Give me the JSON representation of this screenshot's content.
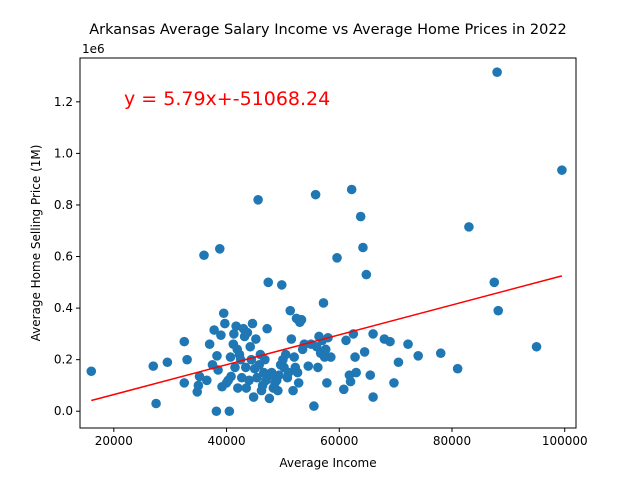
{
  "chart_data": {
    "type": "scatter",
    "title": "Arkansas Average Salary Income vs Average Home Prices in 2022",
    "xlabel": "Average Income",
    "ylabel": "Average Home Selling Price (1M)",
    "y_offset_label": "1e6",
    "xlim": [
      14000,
      102000
    ],
    "ylim": [
      -0.065,
      1.37
    ],
    "xticks": [
      20000,
      40000,
      60000,
      80000,
      100000
    ],
    "xtick_labels": [
      "20000",
      "40000",
      "60000",
      "80000",
      "100000"
    ],
    "yticks": [
      0.0,
      0.2,
      0.4,
      0.6,
      0.8,
      1.0,
      1.2
    ],
    "ytick_labels": [
      "0.0",
      "0.2",
      "0.4",
      "0.6",
      "0.8",
      "1.0",
      "1.2"
    ],
    "grid": false,
    "annotation": "y = 5.79x+-51068.24",
    "colors": {
      "points": "#1f77b4",
      "regression": "#ff0000",
      "annotation": "#ff0000"
    },
    "regression": {
      "slope": 5.79,
      "intercept": -51068.24,
      "x_range": [
        16000,
        99500
      ]
    },
    "points": [
      [
        16000,
        0.155
      ],
      [
        27000,
        0.175
      ],
      [
        27500,
        0.03
      ],
      [
        29500,
        0.19
      ],
      [
        32500,
        0.27
      ],
      [
        32500,
        0.11
      ],
      [
        33000,
        0.2
      ],
      [
        34800,
        0.075
      ],
      [
        35000,
        0.1
      ],
      [
        35200,
        0.135
      ],
      [
        36000,
        0.605
      ],
      [
        36500,
        0.12
      ],
      [
        37000,
        0.26
      ],
      [
        37500,
        0.18
      ],
      [
        37800,
        0.315
      ],
      [
        38200,
        0.0
      ],
      [
        38300,
        0.215
      ],
      [
        38500,
        0.16
      ],
      [
        38800,
        0.63
      ],
      [
        39000,
        0.295
      ],
      [
        39200,
        0.095
      ],
      [
        39500,
        0.38
      ],
      [
        39700,
        0.34
      ],
      [
        40000,
        0.11
      ],
      [
        40300,
        0.12
      ],
      [
        40500,
        0.0
      ],
      [
        40700,
        0.21
      ],
      [
        40800,
        0.135
      ],
      [
        41200,
        0.26
      ],
      [
        41300,
        0.3
      ],
      [
        41500,
        0.17
      ],
      [
        41700,
        0.33
      ],
      [
        41900,
        0.24
      ],
      [
        42000,
        0.09
      ],
      [
        42300,
        0.22
      ],
      [
        42500,
        0.2
      ],
      [
        42700,
        0.13
      ],
      [
        43000,
        0.32
      ],
      [
        43200,
        0.29
      ],
      [
        43400,
        0.17
      ],
      [
        43500,
        0.09
      ],
      [
        43700,
        0.305
      ],
      [
        44000,
        0.12
      ],
      [
        44200,
        0.25
      ],
      [
        44400,
        0.2
      ],
      [
        44600,
        0.34
      ],
      [
        44800,
        0.055
      ],
      [
        45000,
        0.165
      ],
      [
        45200,
        0.28
      ],
      [
        45400,
        0.13
      ],
      [
        45600,
        0.82
      ],
      [
        45800,
        0.18
      ],
      [
        46000,
        0.22
      ],
      [
        46200,
        0.08
      ],
      [
        46400,
        0.1
      ],
      [
        46600,
        0.15
      ],
      [
        46800,
        0.2
      ],
      [
        47000,
        0.12
      ],
      [
        47200,
        0.32
      ],
      [
        47400,
        0.5
      ],
      [
        47600,
        0.05
      ],
      [
        47800,
        0.14
      ],
      [
        48000,
        0.15
      ],
      [
        48300,
        0.09
      ],
      [
        48600,
        0.11
      ],
      [
        48900,
        0.12
      ],
      [
        49100,
        0.08
      ],
      [
        49300,
        0.14
      ],
      [
        49600,
        0.18
      ],
      [
        49800,
        0.49
      ],
      [
        50000,
        0.2
      ],
      [
        50200,
        0.17
      ],
      [
        50500,
        0.22
      ],
      [
        50800,
        0.13
      ],
      [
        51000,
        0.15
      ],
      [
        51300,
        0.39
      ],
      [
        51500,
        0.28
      ],
      [
        51800,
        0.08
      ],
      [
        52000,
        0.21
      ],
      [
        52200,
        0.17
      ],
      [
        52400,
        0.36
      ],
      [
        52600,
        0.15
      ],
      [
        52800,
        0.11
      ],
      [
        53000,
        0.345
      ],
      [
        53300,
        0.355
      ],
      [
        53500,
        0.24
      ],
      [
        53800,
        0.26
      ],
      [
        54500,
        0.175
      ],
      [
        55000,
        0.26
      ],
      [
        55500,
        0.02
      ],
      [
        55800,
        0.84
      ],
      [
        56000,
        0.25
      ],
      [
        56200,
        0.17
      ],
      [
        56400,
        0.29
      ],
      [
        56700,
        0.225
      ],
      [
        57000,
        0.275
      ],
      [
        57200,
        0.42
      ],
      [
        57400,
        0.21
      ],
      [
        57600,
        0.24
      ],
      [
        57800,
        0.11
      ],
      [
        58000,
        0.285
      ],
      [
        58500,
        0.21
      ],
      [
        59600,
        0.595
      ],
      [
        60800,
        0.085
      ],
      [
        61200,
        0.275
      ],
      [
        61800,
        0.14
      ],
      [
        62000,
        0.115
      ],
      [
        62200,
        0.86
      ],
      [
        62500,
        0.3
      ],
      [
        62800,
        0.21
      ],
      [
        63000,
        0.15
      ],
      [
        63800,
        0.755
      ],
      [
        64200,
        0.635
      ],
      [
        64500,
        0.23
      ],
      [
        64800,
        0.53
      ],
      [
        65500,
        0.14
      ],
      [
        66000,
        0.055
      ],
      [
        66000,
        0.3
      ],
      [
        68000,
        0.28
      ],
      [
        69000,
        0.27
      ],
      [
        69700,
        0.11
      ],
      [
        70500,
        0.19
      ],
      [
        72200,
        0.26
      ],
      [
        74000,
        0.215
      ],
      [
        78000,
        0.225
      ],
      [
        81000,
        0.165
      ],
      [
        83000,
        0.715
      ],
      [
        87500,
        0.5
      ],
      [
        88000,
        1.315
      ],
      [
        88200,
        0.39
      ],
      [
        95000,
        0.25
      ],
      [
        99500,
        0.935
      ]
    ]
  }
}
